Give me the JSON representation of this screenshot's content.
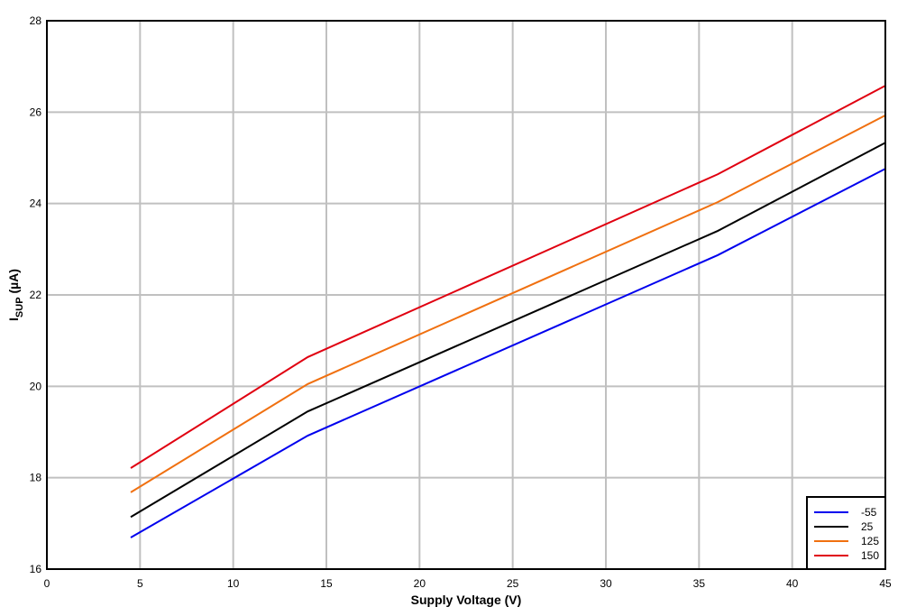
{
  "chart_data": {
    "type": "line",
    "xlabel": "Supply Voltage (V)",
    "ylabel": [
      "I",
      "SUP",
      " (µA)"
    ],
    "xlim": [
      0,
      45
    ],
    "xticks": [
      0,
      5,
      10,
      15,
      20,
      25,
      30,
      35,
      40,
      45
    ],
    "ylim": [
      16,
      28
    ],
    "yticks": [
      16,
      18,
      20,
      22,
      24,
      26,
      28
    ],
    "grid": true,
    "legend": "lower right",
    "x": [
      4.5,
      14,
      36,
      45
    ],
    "series": [
      {
        "name": "-55",
        "color": "#0000ee",
        "values": [
          16.69,
          18.92,
          22.87,
          24.76
        ]
      },
      {
        "name": "25",
        "color": "#000000",
        "values": [
          17.14,
          19.45,
          23.4,
          25.33
        ]
      },
      {
        "name": "125",
        "color": "#f07010",
        "values": [
          17.68,
          20.05,
          24.03,
          25.93
        ]
      },
      {
        "name": "150",
        "color": "#e00010",
        "values": [
          18.21,
          20.64,
          24.64,
          26.58
        ]
      }
    ]
  }
}
